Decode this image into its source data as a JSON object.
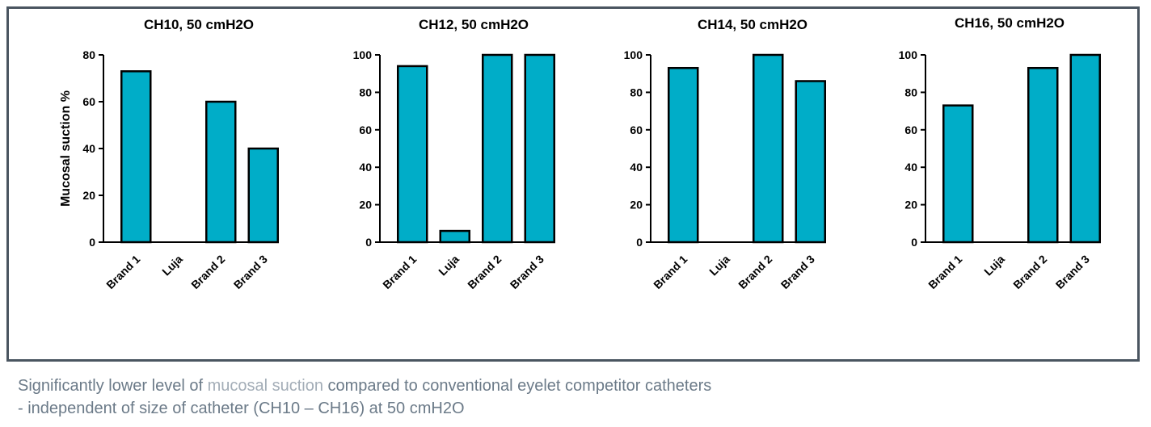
{
  "colors": {
    "bar_fill": "#00adc8",
    "bar_stroke": "#000000",
    "frame": "#4a5560",
    "caption": "#6b7a88",
    "caption_highlight": "#a3adb7"
  },
  "chart_data": [
    {
      "type": "bar",
      "title": "CH10, 50 cmH2O",
      "ylabel": "Mucosal suction %",
      "categories": [
        "Brand 1",
        "Luja",
        "Brand 2",
        "Brand 3"
      ],
      "values": [
        73,
        0,
        60,
        40
      ],
      "ylim": [
        0,
        80
      ],
      "yticks": [
        "0",
        "20",
        "40",
        "60",
        "80"
      ]
    },
    {
      "type": "bar",
      "title": "CH12, 50 cmH2O",
      "ylabel": "",
      "categories": [
        "Brand 1",
        "Luja",
        "Brand 2",
        "Brand 3"
      ],
      "values": [
        94,
        6,
        100,
        100
      ],
      "ylim": [
        0,
        100
      ],
      "yticks": [
        "0",
        "20",
        "40",
        "60",
        "80",
        "100"
      ]
    },
    {
      "type": "bar",
      "title": "CH14, 50 cmH2O",
      "ylabel": "",
      "categories": [
        "Brand 1",
        "Luja",
        "Brand 2",
        "Brand 3"
      ],
      "values": [
        93,
        0,
        100,
        86
      ],
      "ylim": [
        0,
        100
      ],
      "yticks": [
        "0",
        "20",
        "40",
        "60",
        "80",
        "100"
      ]
    },
    {
      "type": "bar",
      "title": "CH16, 50 cmH2O",
      "ylabel": "",
      "categories": [
        "Brand 1",
        "Luja",
        "Brand 2",
        "Brand 3"
      ],
      "values": [
        73,
        0,
        93,
        100
      ],
      "ylim": [
        0,
        100
      ],
      "yticks": [
        "0",
        "20",
        "40",
        "60",
        "80",
        "100"
      ]
    }
  ],
  "caption": {
    "line1_before": "Significantly lower level of ",
    "line1_highlight": "mucosal suction",
    "line1_after": " compared to conventional eyelet competitor catheters",
    "line2": "-  independent of size of catheter (CH10 – CH16) at 50 cmH2O"
  }
}
